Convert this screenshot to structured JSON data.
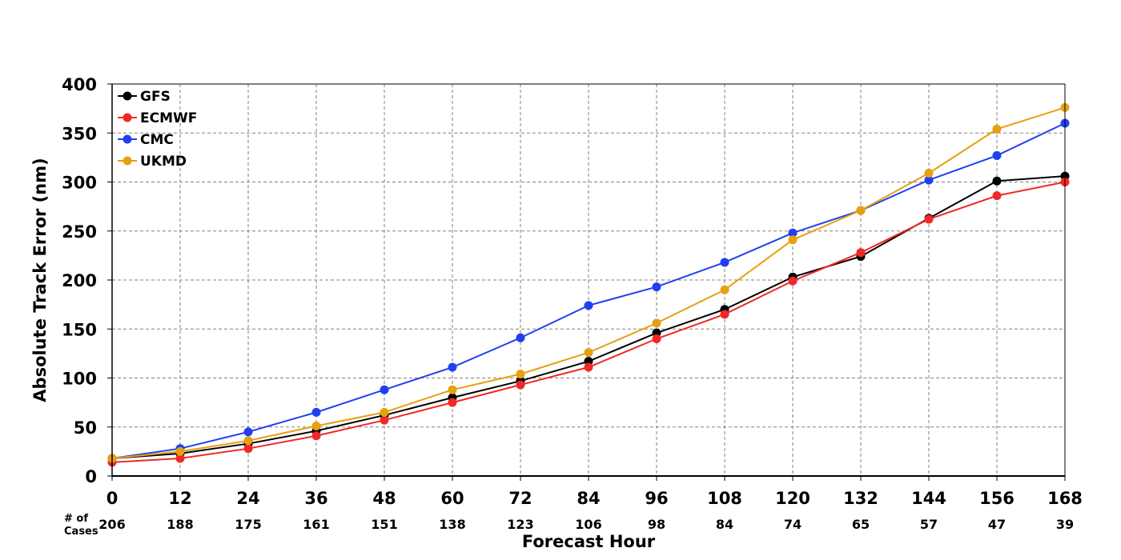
{
  "chart_data": {
    "type": "line",
    "xlabel": "Forecast Hour",
    "ylabel": "Absolute Track Error (nm)",
    "x": [
      0,
      12,
      24,
      36,
      48,
      60,
      72,
      84,
      96,
      108,
      120,
      132,
      144,
      156,
      168
    ],
    "xlim": [
      0,
      168
    ],
    "ylim": [
      0,
      400
    ],
    "yticks": [
      0,
      50,
      100,
      150,
      200,
      250,
      300,
      350,
      400
    ],
    "grid": true,
    "legend_position": "top-left",
    "cases_label_line1": "# of",
    "cases_label_line2": "Cases",
    "cases": [
      "206",
      "188",
      "175",
      "161",
      "151",
      "138",
      "123",
      "106",
      "98",
      "84",
      "74",
      "65",
      "57",
      "47",
      "39"
    ],
    "series": [
      {
        "name": "GFS",
        "color": "#000000",
        "values": [
          18,
          23,
          33,
          46,
          62,
          80,
          97,
          117,
          146,
          170,
          203,
          224,
          263,
          301,
          306
        ]
      },
      {
        "name": "ECMWF",
        "color": "#f02828",
        "values": [
          14,
          18,
          28,
          41,
          57,
          75,
          93,
          111,
          140,
          165,
          199,
          228,
          262,
          286,
          300
        ]
      },
      {
        "name": "CMC",
        "color": "#2040f0",
        "values": [
          18,
          28,
          45,
          65,
          88,
          111,
          141,
          174,
          193,
          218,
          248,
          271,
          302,
          327,
          360
        ]
      },
      {
        "name": "UKMD",
        "color": "#e6a010",
        "values": [
          18,
          25,
          36,
          51,
          65,
          88,
          104,
          126,
          156,
          190,
          241,
          271,
          309,
          354,
          376
        ]
      }
    ]
  }
}
